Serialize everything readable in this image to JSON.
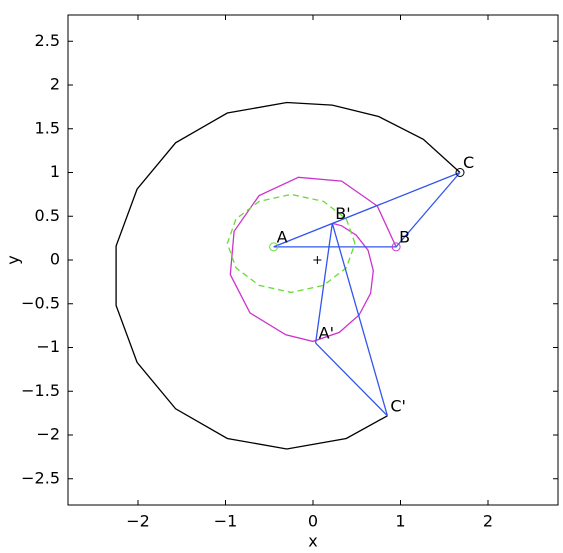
{
  "chart_data": {
    "type": "line",
    "x_label": "x",
    "y_label": "y",
    "xlim": [
      -2.8,
      2.8
    ],
    "ylim": [
      -2.8,
      2.8
    ],
    "xticks": [
      {
        "value": -2,
        "label": "−2"
      },
      {
        "value": -1,
        "label": "−1"
      },
      0,
      1,
      2
    ],
    "yticks": [
      {
        "value": -2.5,
        "label": "−2.5"
      },
      {
        "value": -2,
        "label": "−2"
      },
      {
        "value": -1.5,
        "label": "−1.5"
      },
      {
        "value": -1,
        "label": "−1"
      },
      {
        "value": -0.5,
        "label": "−0.5"
      },
      0,
      0.5,
      1,
      1.5,
      2,
      2.5
    ],
    "series": [
      {
        "color": "#000000",
        "linestyle": "solid",
        "x": [
          1.68,
          1.26,
          0.75,
          0.22,
          -0.3,
          -0.98,
          -1.57,
          -2.01,
          -2.25,
          -2.25,
          -2.01,
          -1.57,
          -0.98,
          -0.3,
          0.38,
          0.85
        ],
        "y": [
          1.0,
          1.38,
          1.64,
          1.77,
          1.8,
          1.68,
          1.34,
          0.81,
          0.16,
          -0.52,
          -1.17,
          -1.7,
          -2.04,
          -2.16,
          -2.04,
          -1.78
        ]
      },
      {
        "color": "#cc33cc",
        "linestyle": "solid",
        "x": [
          0.95,
          0.735,
          0.328,
          -0.167,
          -0.617,
          -0.902,
          -0.945,
          -0.72,
          -0.311,
          0.0,
          0.301,
          0.527,
          0.658,
          0.689,
          0.63,
          0.494,
          0.328,
          0.22
        ],
        "y": [
          0.15,
          0.617,
          0.902,
          0.945,
          0.735,
          0.328,
          -0.167,
          -0.604,
          -0.855,
          -0.93,
          -0.827,
          -0.628,
          -0.38,
          -0.122,
          0.111,
          0.285,
          0.391,
          0.42
        ]
      },
      {
        "color": "#66dd33",
        "linestyle": "dashed",
        "x": [
          0.48,
          0.38,
          0.12,
          -0.25,
          -0.615,
          -0.88,
          -0.98,
          -0.88,
          -0.615,
          -0.25,
          0.12,
          0.38,
          0.48
        ],
        "y": [
          0.19,
          0.47,
          0.67,
          0.75,
          0.67,
          0.47,
          0.19,
          -0.09,
          -0.29,
          -0.37,
          -0.29,
          -0.09,
          0.19
        ]
      },
      {
        "color": "#3355ee",
        "linestyle": "solid",
        "x": [
          -0.45,
          0.95,
          1.68,
          -0.45,
          null,
          0.03,
          0.22,
          0.85,
          0.03
        ],
        "y": [
          0.15,
          0.15,
          1.0,
          0.15,
          null,
          -0.95,
          0.42,
          -1.78,
          -0.95
        ]
      },
      {
        "color": "#66dd33",
        "marker": "o",
        "x": [
          -0.45
        ],
        "y": [
          0.15
        ]
      },
      {
        "color": "#cc33cc",
        "marker": "o",
        "x": [
          0.95
        ],
        "y": [
          0.15
        ]
      },
      {
        "color": "#000000",
        "marker": "o",
        "x": [
          1.68
        ],
        "y": [
          1.0
        ]
      },
      {
        "color": "#000000",
        "marker": "+",
        "x": [
          0.05
        ],
        "y": [
          0.0
        ]
      }
    ],
    "annotations": [
      {
        "text": "A",
        "x": -0.45,
        "y": 0.15
      },
      {
        "text": "B",
        "x": 0.95,
        "y": 0.15
      },
      {
        "text": "C",
        "x": 1.68,
        "y": 1.0
      },
      {
        "text": "A'",
        "x": 0.03,
        "y": -0.95
      },
      {
        "text": "B'",
        "x": 0.22,
        "y": 0.42
      },
      {
        "text": "C'",
        "x": 0.85,
        "y": -1.78
      }
    ]
  }
}
